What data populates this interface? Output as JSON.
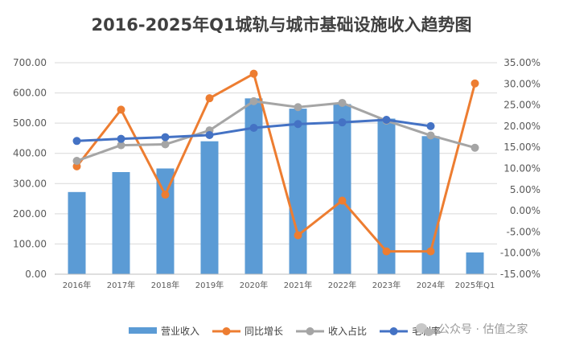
{
  "chart_data": {
    "type": "bar+line",
    "title": "2016-2025年Q1城轨与城市基础设施收入趋势图",
    "categories": [
      "2016年",
      "2017年",
      "2018年",
      "2019年",
      "2020年",
      "2021年",
      "2022年",
      "2023年",
      "2024年",
      "2025年Q1"
    ],
    "series": [
      {
        "name": "营业收入",
        "type": "bar",
        "axis": "left",
        "color": "#5B9BD5",
        "values": [
          272,
          338,
          350,
          440,
          582,
          548,
          563,
          515,
          457,
          72
        ]
      },
      {
        "name": "同比增长",
        "type": "line",
        "axis": "right",
        "color": "#ED7D31",
        "values": [
          10.5,
          23.9,
          3.8,
          26.6,
          32.4,
          -5.8,
          2.4,
          -9.6,
          -9.6,
          30.1
        ]
      },
      {
        "name": "收入占比",
        "type": "line",
        "axis": "right",
        "color": "#A5A5A5",
        "values": [
          11.8,
          15.5,
          15.7,
          19.0,
          25.9,
          24.5,
          25.5,
          21.3,
          17.8,
          14.9
        ]
      },
      {
        "name": "毛利率",
        "type": "line",
        "axis": "right",
        "color": "#4472C4",
        "values": [
          16.5,
          17.0,
          17.4,
          17.9,
          19.6,
          20.5,
          20.9,
          21.5,
          20.0,
          null
        ]
      }
    ],
    "y_left": {
      "min": 0,
      "max": 700,
      "step": 100,
      "ticks": [
        "0.00",
        "100.00",
        "200.00",
        "300.00",
        "400.00",
        "500.00",
        "600.00",
        "700.00"
      ]
    },
    "y_right": {
      "min": -15,
      "max": 35,
      "step": 5,
      "ticks": [
        "-15.00%",
        "-10.00%",
        "-5.00%",
        "0.00%",
        "5.00%",
        "10.00%",
        "15.00%",
        "20.00%",
        "25.00%",
        "30.00%",
        "35.00%"
      ]
    },
    "grid": true,
    "legend_position": "bottom"
  },
  "watermark": "公众号 · 估值之家"
}
